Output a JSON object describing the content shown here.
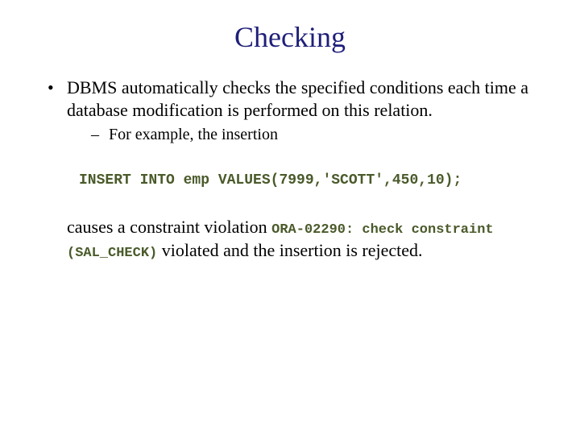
{
  "title": "Checking",
  "colors": {
    "title": "#1f1f7a",
    "body_text": "#000000",
    "code_text": "#4a5a2a",
    "background": "#ffffff"
  },
  "typography": {
    "title_fontsize": 36,
    "body_fontsize": 22,
    "sub_fontsize": 20,
    "code_fontsize": 18,
    "inline_code_fontsize": 17,
    "title_font": "Times New Roman",
    "code_font": "Courier New"
  },
  "bullet1": "DBMS automatically checks the specified conditions each time a database modification is performed on this relation.",
  "sub1": "For example, the insertion",
  "code_block": "INSERT INTO emp VALUES(7999,'SCOTT',450,10);",
  "para": {
    "t1": "causes a constraint violation ",
    "c1": "ORA-02290: check constraint (SAL_CHECK)",
    "t2": " violated and the insertion is rejected."
  }
}
